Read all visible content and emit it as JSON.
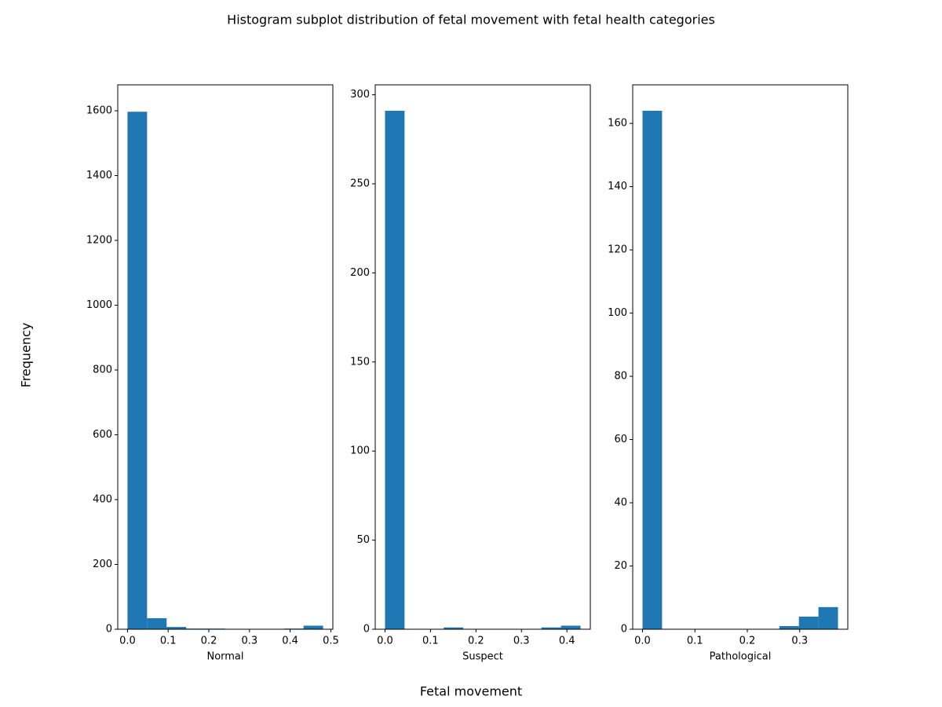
{
  "title": "Histogram subplot distribution of fetal movement with fetal health categories",
  "xlabel": "Fetal movement",
  "ylabel": "Frequency",
  "chart_data": [
    {
      "type": "histogram",
      "xlabel": "Normal",
      "color": "#1f77b4",
      "bins": [
        0,
        0.0481,
        0.0962,
        0.1443,
        0.1924,
        0.2405,
        0.2886,
        0.3367,
        0.3848,
        0.4329,
        0.481
      ],
      "values": [
        1597,
        34,
        7,
        2,
        2,
        0,
        0,
        0,
        2,
        11
      ],
      "xlim": [
        -0.024,
        0.505
      ],
      "ylim": [
        0,
        1680
      ],
      "xticks": [
        {
          "value": 0,
          "label": "0.0"
        },
        0.1,
        0.2,
        0.3,
        0.4,
        0.5
      ],
      "yticks": [
        0,
        200,
        400,
        600,
        800,
        1000,
        1200,
        1400,
        1600
      ]
    },
    {
      "type": "histogram",
      "xlabel": "Suspect",
      "color": "#1f77b4",
      "bins": [
        0,
        0.043,
        0.086,
        0.129,
        0.172,
        0.215,
        0.258,
        0.301,
        0.344,
        0.387,
        0.43
      ],
      "values": [
        291,
        0,
        0,
        1,
        0,
        0,
        0,
        0,
        1,
        2
      ],
      "xlim": [
        -0.0215,
        0.4515
      ],
      "ylim": [
        0,
        305.55
      ],
      "xticks": [
        {
          "value": 0,
          "label": "0.0"
        },
        0.1,
        0.2,
        0.3,
        0.4
      ],
      "yticks": [
        0,
        50,
        100,
        150,
        200,
        250,
        300
      ]
    },
    {
      "type": "histogram",
      "xlabel": "Pathological",
      "color": "#1f77b4",
      "bins": [
        0,
        0.0373,
        0.0746,
        0.1119,
        0.1492,
        0.1865,
        0.2238,
        0.2611,
        0.2984,
        0.3357,
        0.373
      ],
      "values": [
        164,
        0,
        0,
        0,
        0,
        0,
        0,
        1,
        4,
        7
      ],
      "xlim": [
        -0.0187,
        0.3917
      ],
      "ylim": [
        0,
        172.2
      ],
      "xticks": [
        {
          "value": 0,
          "label": "0.0"
        },
        0.1,
        0.2,
        0.3
      ],
      "yticks": [
        0,
        20,
        40,
        60,
        80,
        100,
        120,
        140,
        160
      ]
    }
  ]
}
